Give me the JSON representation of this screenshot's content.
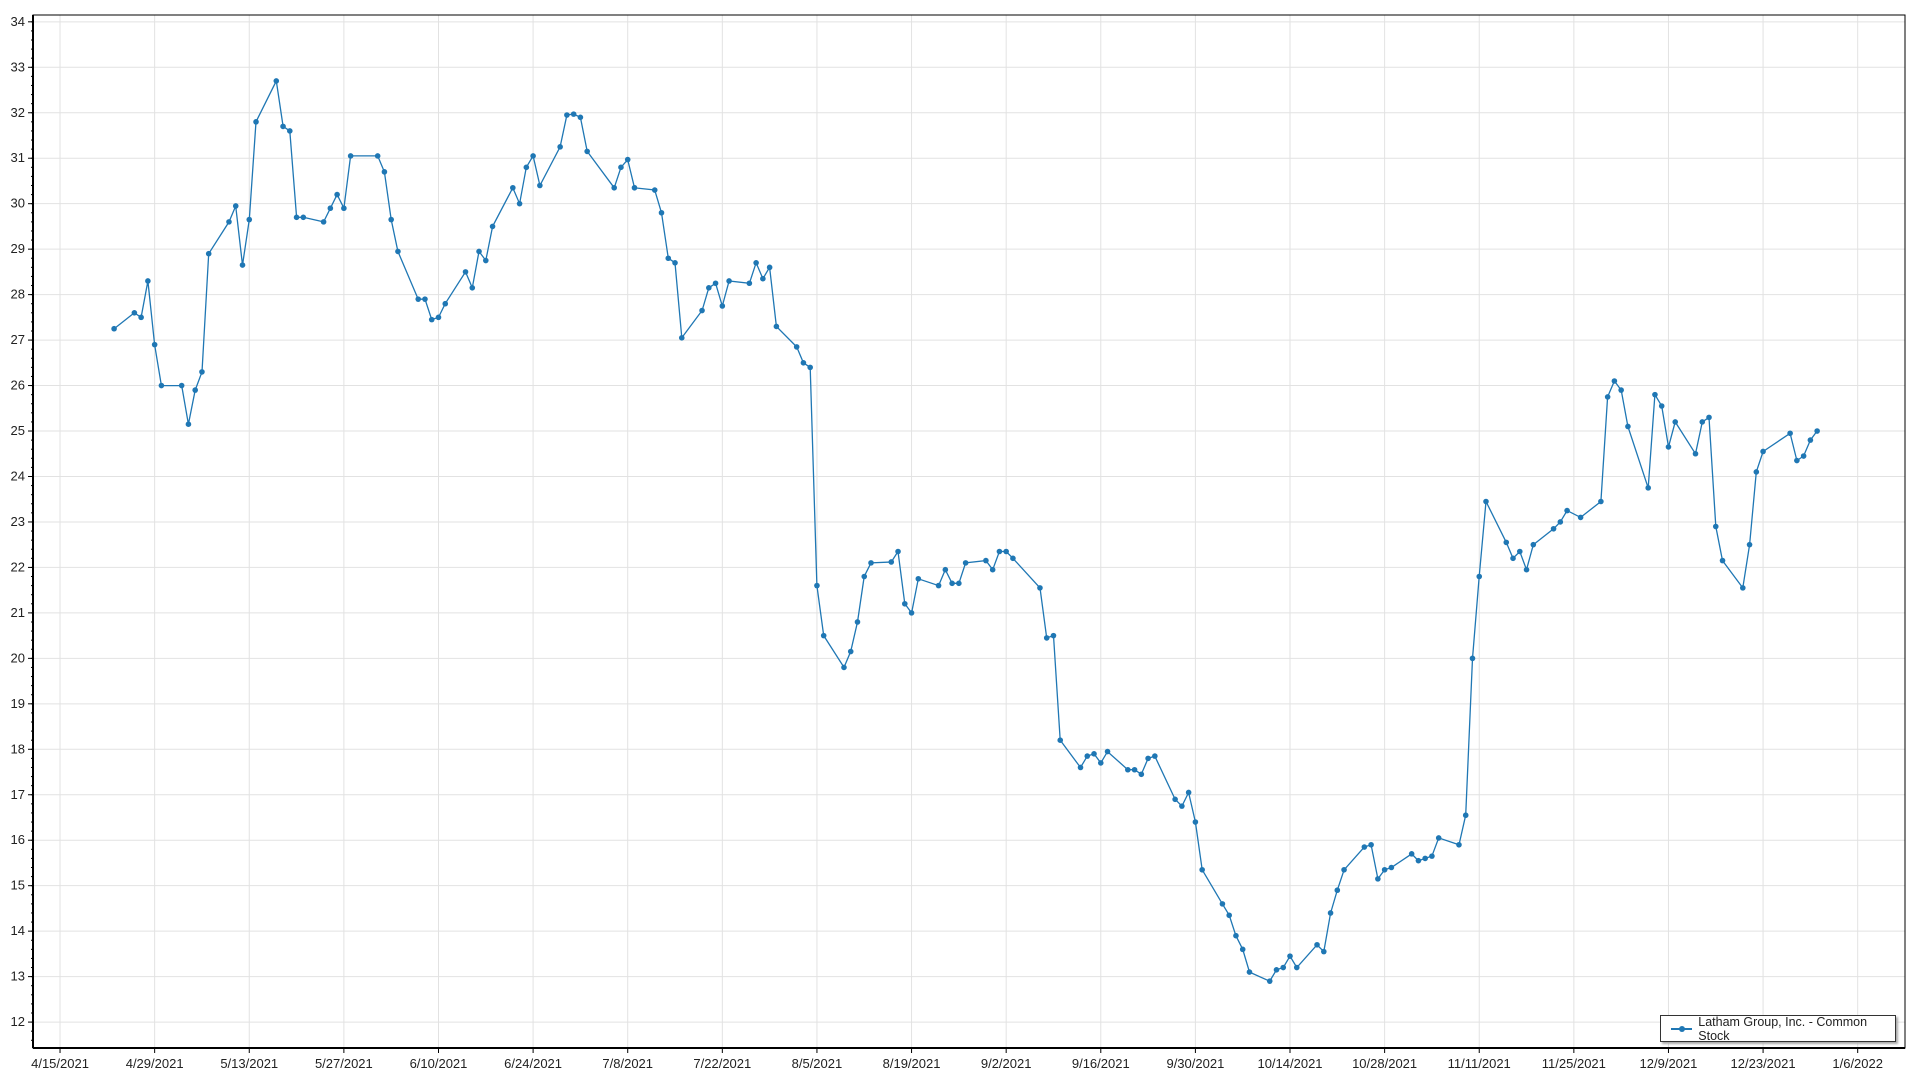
{
  "chart_data": {
    "type": "line",
    "title": "",
    "xlabel": "",
    "ylabel": "",
    "xlim": [
      "2021-04-11",
      "2022-01-13"
    ],
    "ylim": [
      11.43,
      34.15
    ],
    "x_ticks": [
      "4/15/2021",
      "4/29/2021",
      "5/13/2021",
      "5/27/2021",
      "6/10/2021",
      "6/24/2021",
      "7/8/2021",
      "7/22/2021",
      "8/5/2021",
      "8/19/2021",
      "9/2/2021",
      "9/16/2021",
      "9/30/2021",
      "10/14/2021",
      "10/28/2021",
      "11/11/2021",
      "11/25/2021",
      "12/9/2021",
      "12/23/2021",
      "1/6/2022"
    ],
    "y_ticks": [
      12,
      13,
      14,
      15,
      16,
      17,
      18,
      19,
      20,
      21,
      22,
      23,
      24,
      25,
      26,
      27,
      28,
      29,
      30,
      31,
      32,
      33,
      34
    ],
    "grid": true,
    "legend_position": "bottom-right",
    "color": "#1f77b4",
    "series": [
      {
        "name": "Latham Group, Inc. - Common Stock",
        "points": [
          [
            "2021-04-23",
            27.25
          ],
          [
            "2021-04-26",
            27.6
          ],
          [
            "2021-04-27",
            27.5
          ],
          [
            "2021-04-28",
            28.3
          ],
          [
            "2021-04-29",
            26.9
          ],
          [
            "2021-04-30",
            26.0
          ],
          [
            "2021-05-03",
            26.0
          ],
          [
            "2021-05-04",
            25.15
          ],
          [
            "2021-05-05",
            25.9
          ],
          [
            "2021-05-06",
            26.3
          ],
          [
            "2021-05-07",
            28.9
          ],
          [
            "2021-05-10",
            29.6
          ],
          [
            "2021-05-11",
            29.95
          ],
          [
            "2021-05-12",
            28.65
          ],
          [
            "2021-05-13",
            29.65
          ],
          [
            "2021-05-14",
            31.8
          ],
          [
            "2021-05-17",
            32.7
          ],
          [
            "2021-05-18",
            31.7
          ],
          [
            "2021-05-19",
            31.6
          ],
          [
            "2021-05-20",
            29.7
          ],
          [
            "2021-05-21",
            29.7
          ],
          [
            "2021-05-24",
            29.6
          ],
          [
            "2021-05-25",
            29.9
          ],
          [
            "2021-05-26",
            30.2
          ],
          [
            "2021-05-27",
            29.9
          ],
          [
            "2021-05-28",
            31.05
          ],
          [
            "2021-06-01",
            31.05
          ],
          [
            "2021-06-02",
            30.7
          ],
          [
            "2021-06-03",
            29.65
          ],
          [
            "2021-06-04",
            28.95
          ],
          [
            "2021-06-07",
            27.9
          ],
          [
            "2021-06-08",
            27.9
          ],
          [
            "2021-06-09",
            27.45
          ],
          [
            "2021-06-10",
            27.5
          ],
          [
            "2021-06-11",
            27.8
          ],
          [
            "2021-06-14",
            28.5
          ],
          [
            "2021-06-15",
            28.15
          ],
          [
            "2021-06-16",
            28.95
          ],
          [
            "2021-06-17",
            28.75
          ],
          [
            "2021-06-18",
            29.5
          ],
          [
            "2021-06-21",
            30.35
          ],
          [
            "2021-06-22",
            30.0
          ],
          [
            "2021-06-23",
            30.8
          ],
          [
            "2021-06-24",
            31.05
          ],
          [
            "2021-06-25",
            30.4
          ],
          [
            "2021-06-28",
            31.25
          ],
          [
            "2021-06-29",
            31.95
          ],
          [
            "2021-06-30",
            31.97
          ],
          [
            "2021-07-01",
            31.9
          ],
          [
            "2021-07-02",
            31.15
          ],
          [
            "2021-07-06",
            30.35
          ],
          [
            "2021-07-07",
            30.8
          ],
          [
            "2021-07-08",
            30.97
          ],
          [
            "2021-07-09",
            30.35
          ],
          [
            "2021-07-12",
            30.3
          ],
          [
            "2021-07-13",
            29.8
          ],
          [
            "2021-07-14",
            28.8
          ],
          [
            "2021-07-15",
            28.7
          ],
          [
            "2021-07-16",
            27.05
          ],
          [
            "2021-07-19",
            27.65
          ],
          [
            "2021-07-20",
            28.15
          ],
          [
            "2021-07-21",
            28.25
          ],
          [
            "2021-07-22",
            27.75
          ],
          [
            "2021-07-23",
            28.3
          ],
          [
            "2021-07-26",
            28.25
          ],
          [
            "2021-07-27",
            28.7
          ],
          [
            "2021-07-28",
            28.35
          ],
          [
            "2021-07-29",
            28.6
          ],
          [
            "2021-07-30",
            27.3
          ],
          [
            "2021-08-02",
            26.85
          ],
          [
            "2021-08-03",
            26.5
          ],
          [
            "2021-08-04",
            26.4
          ],
          [
            "2021-08-05",
            21.6
          ],
          [
            "2021-08-06",
            20.5
          ],
          [
            "2021-08-09",
            19.8
          ],
          [
            "2021-08-10",
            20.15
          ],
          [
            "2021-08-11",
            20.8
          ],
          [
            "2021-08-12",
            21.8
          ],
          [
            "2021-08-13",
            22.1
          ],
          [
            "2021-08-16",
            22.12
          ],
          [
            "2021-08-17",
            22.35
          ],
          [
            "2021-08-18",
            21.2
          ],
          [
            "2021-08-19",
            21.0
          ],
          [
            "2021-08-20",
            21.75
          ],
          [
            "2021-08-23",
            21.6
          ],
          [
            "2021-08-24",
            21.95
          ],
          [
            "2021-08-25",
            21.65
          ],
          [
            "2021-08-26",
            21.65
          ],
          [
            "2021-08-27",
            22.1
          ],
          [
            "2021-08-30",
            22.15
          ],
          [
            "2021-08-31",
            21.95
          ],
          [
            "2021-09-01",
            22.35
          ],
          [
            "2021-09-02",
            22.35
          ],
          [
            "2021-09-03",
            22.2
          ],
          [
            "2021-09-07",
            21.55
          ],
          [
            "2021-09-08",
            20.45
          ],
          [
            "2021-09-09",
            20.5
          ],
          [
            "2021-09-10",
            18.2
          ],
          [
            "2021-09-13",
            17.6
          ],
          [
            "2021-09-14",
            17.85
          ],
          [
            "2021-09-15",
            17.9
          ],
          [
            "2021-09-16",
            17.7
          ],
          [
            "2021-09-17",
            17.95
          ],
          [
            "2021-09-20",
            17.55
          ],
          [
            "2021-09-21",
            17.55
          ],
          [
            "2021-09-22",
            17.45
          ],
          [
            "2021-09-23",
            17.8
          ],
          [
            "2021-09-24",
            17.85
          ],
          [
            "2021-09-27",
            16.9
          ],
          [
            "2021-09-28",
            16.75
          ],
          [
            "2021-09-29",
            17.05
          ],
          [
            "2021-09-30",
            16.4
          ],
          [
            "2021-10-01",
            15.35
          ],
          [
            "2021-10-04",
            14.6
          ],
          [
            "2021-10-05",
            14.35
          ],
          [
            "2021-10-06",
            13.9
          ],
          [
            "2021-10-07",
            13.6
          ],
          [
            "2021-10-08",
            13.1
          ],
          [
            "2021-10-11",
            12.9
          ],
          [
            "2021-10-12",
            13.15
          ],
          [
            "2021-10-13",
            13.2
          ],
          [
            "2021-10-14",
            13.45
          ],
          [
            "2021-10-15",
            13.2
          ],
          [
            "2021-10-18",
            13.7
          ],
          [
            "2021-10-19",
            13.55
          ],
          [
            "2021-10-20",
            14.4
          ],
          [
            "2021-10-21",
            14.9
          ],
          [
            "2021-10-22",
            15.35
          ],
          [
            "2021-10-25",
            15.85
          ],
          [
            "2021-10-26",
            15.9
          ],
          [
            "2021-10-27",
            15.15
          ],
          [
            "2021-10-28",
            15.35
          ],
          [
            "2021-10-29",
            15.4
          ],
          [
            "2021-11-01",
            15.7
          ],
          [
            "2021-11-02",
            15.55
          ],
          [
            "2021-11-03",
            15.6
          ],
          [
            "2021-11-04",
            15.65
          ],
          [
            "2021-11-05",
            16.05
          ],
          [
            "2021-11-08",
            15.9
          ],
          [
            "2021-11-09",
            16.55
          ],
          [
            "2021-11-10",
            20.0
          ],
          [
            "2021-11-11",
            21.8
          ],
          [
            "2021-11-12",
            23.45
          ],
          [
            "2021-11-15",
            22.55
          ],
          [
            "2021-11-16",
            22.2
          ],
          [
            "2021-11-17",
            22.35
          ],
          [
            "2021-11-18",
            21.95
          ],
          [
            "2021-11-19",
            22.5
          ],
          [
            "2021-11-22",
            22.85
          ],
          [
            "2021-11-23",
            23.0
          ],
          [
            "2021-11-24",
            23.25
          ],
          [
            "2021-11-26",
            23.1
          ],
          [
            "2021-11-29",
            23.45
          ],
          [
            "2021-11-30",
            25.75
          ],
          [
            "2021-12-01",
            26.1
          ],
          [
            "2021-12-02",
            25.9
          ],
          [
            "2021-12-03",
            25.1
          ],
          [
            "2021-12-06",
            23.75
          ],
          [
            "2021-12-07",
            25.8
          ],
          [
            "2021-12-08",
            25.55
          ],
          [
            "2021-12-09",
            24.65
          ],
          [
            "2021-12-10",
            25.2
          ],
          [
            "2021-12-13",
            24.5
          ],
          [
            "2021-12-14",
            25.2
          ],
          [
            "2021-12-15",
            25.3
          ],
          [
            "2021-12-16",
            22.9
          ],
          [
            "2021-12-17",
            22.15
          ],
          [
            "2021-12-20",
            21.55
          ],
          [
            "2021-12-21",
            22.5
          ],
          [
            "2021-12-22",
            24.1
          ],
          [
            "2021-12-23",
            24.55
          ],
          [
            "2021-12-27",
            24.95
          ],
          [
            "2021-12-28",
            24.35
          ],
          [
            "2021-12-29",
            24.45
          ],
          [
            "2021-12-30",
            24.8
          ],
          [
            "2021-12-31",
            25.0
          ]
        ]
      }
    ]
  }
}
